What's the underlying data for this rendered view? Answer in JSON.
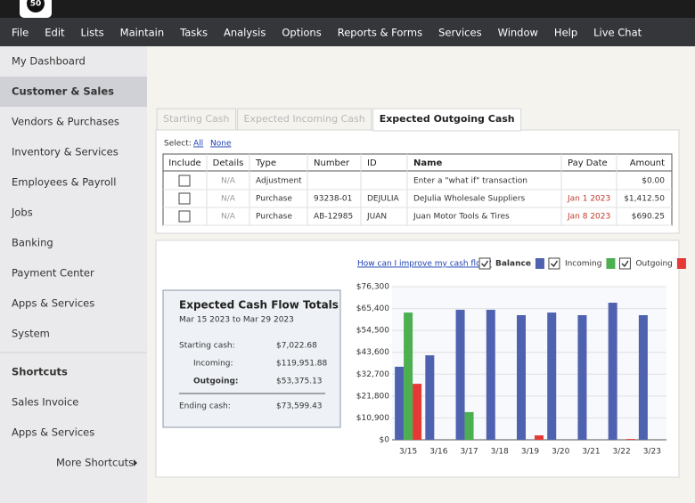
{
  "logo": "50",
  "menu": [
    "File",
    "Edit",
    "Lists",
    "Maintain",
    "Tasks",
    "Analysis",
    "Options",
    "Reports & Forms",
    "Services",
    "Window",
    "Help",
    "Live Chat"
  ],
  "sidebar": {
    "items": [
      "My Dashboard",
      "Customer & Sales",
      "Vendors & Purchases",
      "Inventory & Services",
      "Employees & Payroll",
      "Jobs",
      "Banking",
      "Payment Center",
      "Apps & Services",
      "System"
    ],
    "selected": 1,
    "shortcuts_title": "Shortcuts",
    "shortcuts": [
      "Sales Invoice",
      "Apps & Services"
    ],
    "more": "More Shortcuts"
  },
  "tabs": {
    "items": [
      "Starting Cash",
      "Expected Incoming Cash",
      "Expected Outgoing Cash"
    ],
    "active": 2
  },
  "select": {
    "label": "Select:",
    "all": "All",
    "none": "None"
  },
  "table": {
    "columns": [
      "Include",
      "Details",
      "Type",
      "Number",
      "ID",
      "Name",
      "Pay Date",
      "Amount"
    ],
    "rows": [
      [
        null,
        "N/A",
        "Adjustment",
        null,
        null,
        "Enter a \"what if\" transaction",
        null,
        "$0.00"
      ],
      [
        null,
        "N/A",
        "Purchase",
        "93238-01",
        "DEJULIA",
        "DeJulia Wholesale Suppliers",
        "Jan 1 2023",
        "$1,412.50"
      ],
      [
        null,
        "N/A",
        "Purchase",
        "AB-12985",
        "JUAN",
        "Juan Motor Tools & Tires",
        "Jan 8 2023",
        "$690.25"
      ]
    ]
  },
  "summary": {
    "title": "Expected Cash Flow Totals",
    "period": "Mar 15 2023 to Mar 29 2023",
    "rows": [
      [
        "Starting cash:",
        "$7,022.68"
      ],
      [
        "Incoming:",
        "$119,951.88"
      ],
      [
        "Outgoing:",
        "$53,375.13"
      ],
      [
        "Ending cash:",
        "$73,599.43"
      ]
    ]
  },
  "chart_data": {
    "type": "bar",
    "link": "How can I improve my cash flow?",
    "categories": [
      "3/15",
      "3/16",
      "3/17",
      "3/18",
      "3/19",
      "3/20",
      "3/21",
      "3/22",
      "3/23"
    ],
    "series": [
      {
        "name": "Balance",
        "color": "#4f62b0",
        "values": [
          36400,
          42100,
          64800,
          64800,
          62100,
          63400,
          62100,
          68300,
          62100
        ]
      },
      {
        "name": "Incoming",
        "color": "#4caf50",
        "values": [
          63400,
          0,
          13800,
          0,
          0,
          0,
          0,
          0,
          0
        ]
      },
      {
        "name": "Outgoing",
        "color": "#e53935",
        "values": [
          27900,
          0,
          0,
          0,
          2200,
          0,
          0,
          400,
          0
        ]
      }
    ],
    "ylim": [
      0,
      76300
    ],
    "yticks": [
      {
        "value": 0,
        "label": "$0"
      },
      {
        "value": 10900,
        "label": "$10,900"
      },
      {
        "value": 21800,
        "label": "$21,800"
      },
      {
        "value": 32700,
        "label": "$32,700"
      },
      {
        "value": 43600,
        "label": "$43,600"
      },
      {
        "value": 54500,
        "label": "$54,500"
      },
      {
        "value": 65400,
        "label": "$65,400"
      },
      {
        "value": 76300,
        "label": "$76,300"
      }
    ],
    "grid": true
  }
}
